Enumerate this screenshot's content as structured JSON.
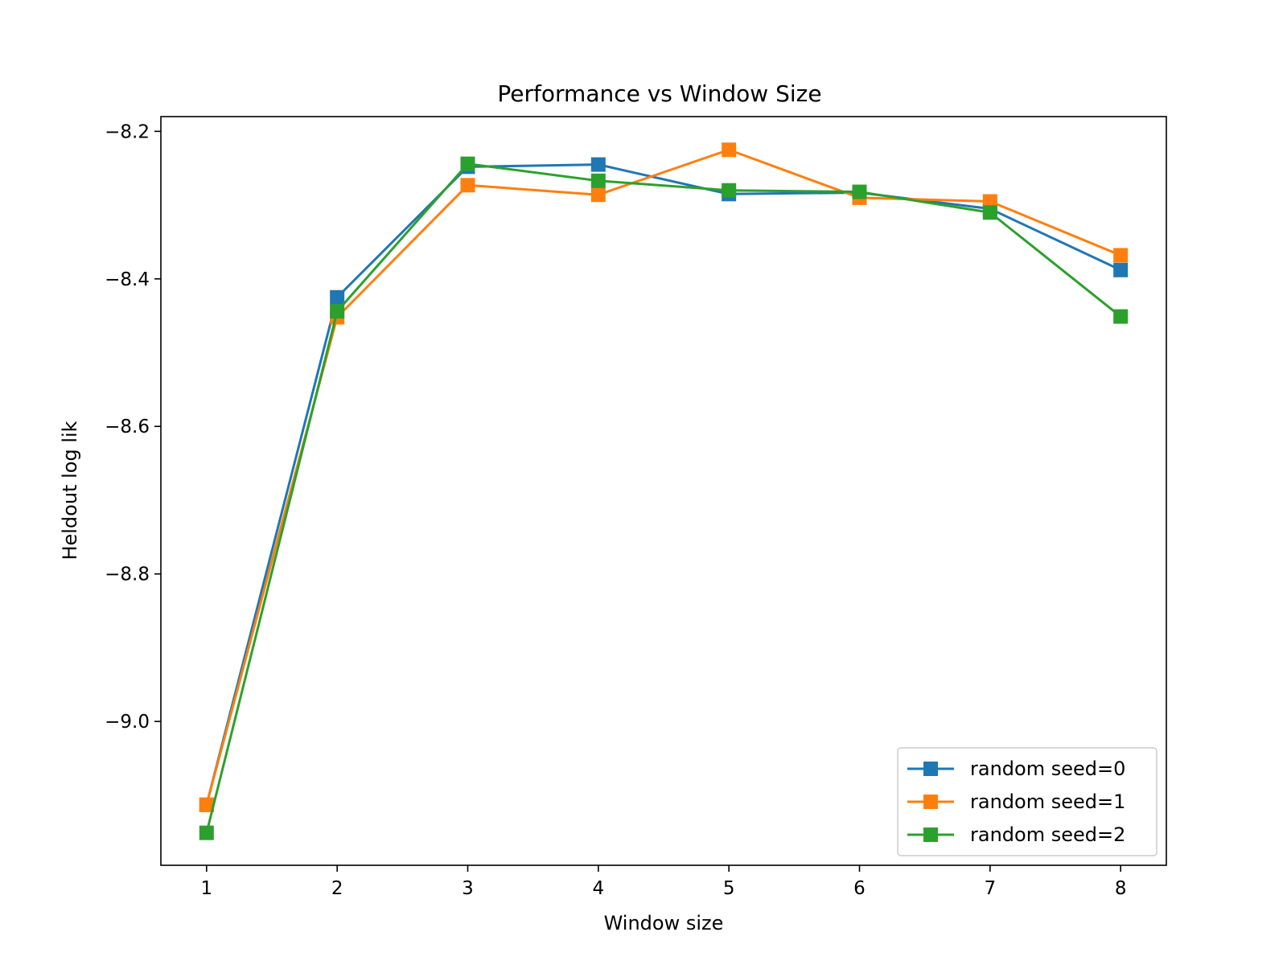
{
  "chart_data": {
    "type": "line",
    "title": "Performance vs Window Size",
    "xlabel": "Window size",
    "ylabel": "Heldout log lik",
    "x": [
      1,
      2,
      3,
      4,
      5,
      6,
      7,
      8
    ],
    "xticks": [
      "1",
      "2",
      "3",
      "4",
      "5",
      "6",
      "7",
      "8"
    ],
    "yticks": [
      -8.2,
      -8.4,
      -8.6,
      -8.8,
      -9.0
    ],
    "ytick_labels": [
      "−8.2",
      "−8.4",
      "−8.6",
      "−8.8",
      "−9.0"
    ],
    "xlim": [
      0.65,
      8.35
    ],
    "ylim": [
      -9.195,
      -8.18
    ],
    "grid": false,
    "legend_position": "lower-right",
    "marker": "square",
    "series": [
      {
        "name": "random seed=0",
        "color": "#1f77b4",
        "values": [
          -9.113,
          -8.425,
          -8.248,
          -8.245,
          -8.285,
          -8.283,
          -8.305,
          -8.388
        ]
      },
      {
        "name": "random seed=1",
        "color": "#ff7f0e",
        "values": [
          -9.113,
          -8.452,
          -8.273,
          -8.286,
          -8.225,
          -8.29,
          -8.295,
          -8.368
        ]
      },
      {
        "name": "random seed=2",
        "color": "#2ca02c",
        "values": [
          -9.151,
          -8.444,
          -8.244,
          -8.267,
          -8.28,
          -8.282,
          -8.31,
          -8.451
        ]
      }
    ]
  }
}
